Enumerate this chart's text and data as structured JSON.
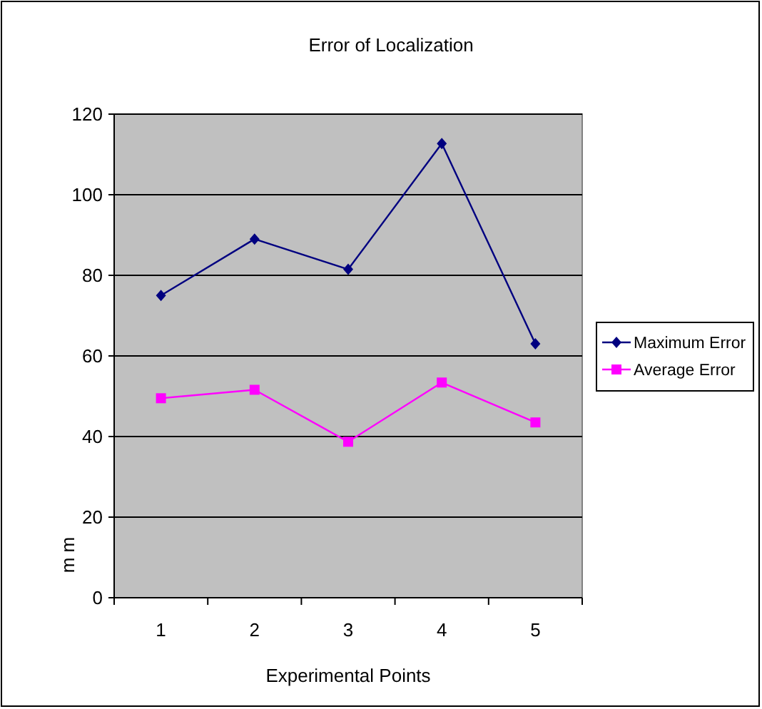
{
  "chart_data": {
    "type": "line",
    "title": "Error of Localization",
    "xlabel": "Experimental Points",
    "ylabel": "m m",
    "categories": [
      "1",
      "2",
      "3",
      "4",
      "5"
    ],
    "series": [
      {
        "name": "Maximum Error",
        "color": "#000080",
        "marker": "diamond",
        "values": [
          75,
          89,
          81.5,
          112.7,
          63
        ]
      },
      {
        "name": "Average Error",
        "color": "#ff00ff",
        "marker": "square",
        "values": [
          49.5,
          51.6,
          38.7,
          53.4,
          43.5
        ]
      }
    ],
    "ylim": [
      0,
      120
    ],
    "yticks": [
      0,
      20,
      40,
      60,
      80,
      100,
      120
    ],
    "grid": "y",
    "legend": "right",
    "line_style": "solid"
  }
}
